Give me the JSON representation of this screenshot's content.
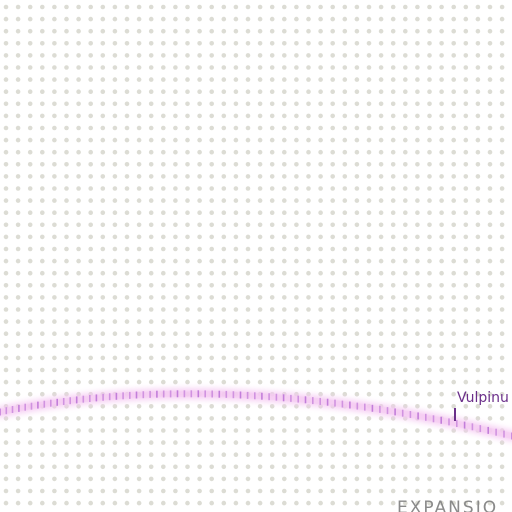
{
  "map": {
    "background_color": "#ffffff",
    "dot_color": "#dcdcd4",
    "track": {
      "label": "Vulpinu",
      "glow_color": "#f5c9f2",
      "tick_color": "#c07ad9",
      "label_color": "#6b2f8a"
    },
    "region": {
      "label": "EXPANSIO",
      "color": "#8a8a8a"
    }
  }
}
